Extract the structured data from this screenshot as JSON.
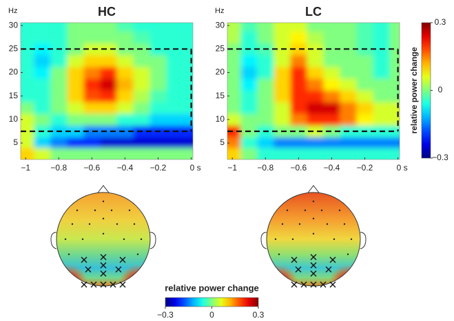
{
  "chart_data": [
    {
      "type": "heatmap",
      "title": "HC",
      "y_label": "Hz",
      "colormap": "jet",
      "zlim": [
        -0.3,
        0.3
      ],
      "x": [
        -1.0,
        -0.9,
        -0.8,
        -0.7,
        -0.6,
        -0.5,
        -0.4,
        -0.3,
        -0.2,
        -0.1,
        0.0
      ],
      "y": [
        3,
        5,
        7.5,
        10,
        12.5,
        15,
        17.5,
        20,
        22.5,
        25,
        27.5,
        30
      ],
      "values": [
        [
          0.1,
          0.05,
          0.0,
          0,
          0,
          0,
          0,
          0,
          0,
          0,
          0
        ],
        [
          0.05,
          -0.1,
          -0.15,
          -0.2,
          -0.2,
          -0.25,
          -0.25,
          -0.25,
          -0.25,
          -0.25,
          -0.25
        ],
        [
          0.05,
          -0.05,
          -0.1,
          -0.1,
          -0.15,
          -0.15,
          -0.15,
          -0.2,
          -0.2,
          -0.2,
          -0.2
        ],
        [
          0.05,
          0,
          -0.05,
          0,
          0,
          0,
          -0.05,
          -0.05,
          -0.1,
          -0.1,
          -0.1
        ],
        [
          0,
          -0.05,
          0,
          0.05,
          0.1,
          0.1,
          0.05,
          0,
          -0.05,
          -0.05,
          -0.05
        ],
        [
          -0.05,
          -0.05,
          0,
          0.1,
          0.18,
          0.2,
          0.1,
          0.03,
          -0.03,
          -0.05,
          -0.05
        ],
        [
          -0.05,
          -0.05,
          0,
          0.1,
          0.2,
          0.25,
          0.12,
          0.05,
          0,
          -0.05,
          -0.05
        ],
        [
          -0.05,
          -0.08,
          0,
          0.1,
          0.15,
          0.2,
          0.1,
          0.05,
          0,
          -0.05,
          -0.05
        ],
        [
          -0.05,
          -0.1,
          -0.05,
          0.05,
          0.1,
          0.1,
          0.05,
          0,
          0,
          -0.05,
          -0.05
        ],
        [
          -0.05,
          -0.08,
          -0.05,
          0,
          0.05,
          0.05,
          0,
          0,
          -0.05,
          -0.05,
          -0.05
        ],
        [
          -0.05,
          -0.05,
          -0.05,
          0,
          0,
          0,
          0,
          -0.03,
          -0.05,
          -0.05,
          -0.05
        ],
        [
          -0.05,
          -0.05,
          -0.05,
          0,
          0,
          0,
          -0.03,
          -0.05,
          -0.05,
          -0.05,
          -0.05
        ]
      ],
      "xlim": [
        -1.03,
        0.01
      ],
      "ylim": [
        1.5,
        30.6
      ],
      "xticks": [
        {
          "value": -1,
          "label": "−1"
        },
        {
          "value": -0.8,
          "label": "−0.8"
        },
        {
          "value": -0.6,
          "label": "−0.6"
        },
        {
          "value": -0.4,
          "label": "−0.4"
        },
        {
          "value": -0.2,
          "label": "−0.2"
        },
        {
          "value": 0,
          "label": "0 s"
        }
      ],
      "yticks": [
        5,
        10,
        15,
        20,
        25,
        30
      ],
      "box": {
        "xlim": [
          -1.03,
          0
        ],
        "ylim": [
          7.5,
          25
        ]
      }
    },
    {
      "type": "heatmap",
      "title": "LC",
      "y_label": "Hz",
      "colormap": "jet",
      "zlim": [
        -0.3,
        0.3
      ],
      "x": [
        -1.0,
        -0.9,
        -0.8,
        -0.7,
        -0.6,
        -0.5,
        -0.4,
        -0.3,
        -0.2,
        -0.1,
        0.0
      ],
      "y": [
        3,
        5,
        7.5,
        10,
        12.5,
        15,
        17.5,
        20,
        22.5,
        25,
        27.5,
        30
      ],
      "values": [
        [
          0.1,
          0.0,
          -0.05,
          -0.05,
          -0.05,
          -0.05,
          -0.05,
          -0.05,
          -0.05,
          -0.05,
          -0.05
        ],
        [
          0.15,
          -0.05,
          -0.1,
          -0.15,
          -0.15,
          -0.15,
          -0.15,
          -0.15,
          -0.15,
          -0.15,
          -0.15
        ],
        [
          0.2,
          0,
          -0.05,
          0,
          0,
          0.05,
          0,
          -0.05,
          -0.05,
          -0.05,
          -0.05
        ],
        [
          0.05,
          0,
          0,
          0.05,
          0.15,
          0.2,
          0.2,
          0.15,
          0.08,
          0.05,
          0.05
        ],
        [
          0,
          -0.05,
          0,
          0.05,
          0.2,
          0.25,
          0.25,
          0.15,
          0.1,
          0.05,
          0.05
        ],
        [
          0,
          -0.05,
          0,
          0.1,
          0.2,
          0.2,
          0.15,
          0.1,
          0.05,
          0,
          0
        ],
        [
          0,
          -0.08,
          0,
          0.1,
          0.2,
          0.15,
          0.08,
          0.05,
          0,
          0,
          0
        ],
        [
          0,
          -0.1,
          -0.05,
          0.1,
          0.2,
          0.1,
          0.05,
          0,
          0,
          -0.05,
          0
        ],
        [
          0,
          -0.08,
          -0.05,
          0.05,
          0.15,
          0.05,
          0,
          0,
          0,
          -0.05,
          0
        ],
        [
          0,
          -0.05,
          -0.03,
          0.05,
          0.1,
          0.05,
          0,
          0,
          -0.03,
          -0.05,
          0
        ],
        [
          0.03,
          -0.05,
          0,
          0.05,
          0.08,
          0.03,
          0,
          0,
          -0.03,
          -0.05,
          0
        ],
        [
          0.03,
          -0.03,
          0,
          0.05,
          0.05,
          0,
          0,
          0,
          -0.03,
          -0.05,
          0
        ]
      ],
      "xlim": [
        -1.03,
        0.01
      ],
      "ylim": [
        1.5,
        30.6
      ],
      "xticks": [
        {
          "value": -1,
          "label": "−1"
        },
        {
          "value": -0.8,
          "label": "−0.8"
        },
        {
          "value": -0.6,
          "label": "−0.6"
        },
        {
          "value": -0.4,
          "label": "−0.4"
        },
        {
          "value": -0.2,
          "label": "−0.2"
        },
        {
          "value": 0,
          "label": "0 s"
        }
      ],
      "yticks": [
        5,
        10,
        15,
        20,
        25,
        30
      ],
      "box": {
        "xlim": [
          -1.03,
          0
        ],
        "ylim": [
          7.5,
          25
        ]
      }
    }
  ],
  "colorbar": {
    "label": "relative power change",
    "lim": [
      -0.3,
      0.3
    ],
    "ticks": [
      {
        "value": 0.3,
        "label": "0.3"
      },
      0,
      {
        "value": -0.3,
        "label": "−0.3"
      }
    ]
  },
  "topo_colorbar": {
    "label": "relative power change",
    "lim": [
      -0.3,
      0.3
    ],
    "ticks": [
      {
        "value": -0.3,
        "label": "−0.3"
      },
      0,
      {
        "value": 0.3,
        "label": "0.3"
      }
    ]
  }
}
